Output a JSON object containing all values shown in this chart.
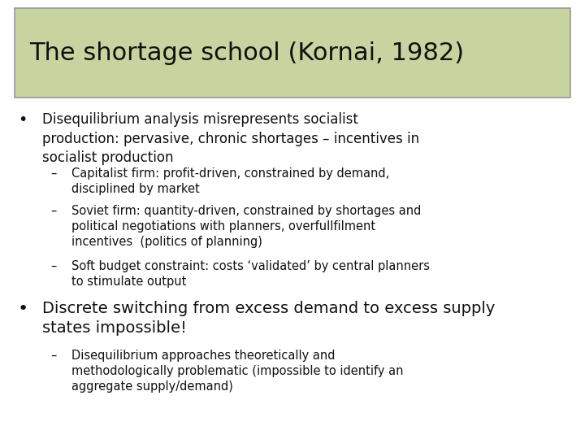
{
  "title": "The shortage school (Kornai, 1982)",
  "title_bg_color": "#c8d4a0",
  "title_border_color": "#999999",
  "background_color": "#ffffff",
  "title_fontsize": 22,
  "body_fontsize": 12,
  "sub_fontsize": 10.5,
  "bullet2_fontsize": 14,
  "bullet1_text": "Disequilibrium analysis misrepresents socialist\nproduction: pervasive, chronic shortages – incentives in\nsocialist production",
  "sub1_text": "Capitalist firm: profit-driven, constrained by demand,\ndisciplined by market",
  "sub2_text": "Soviet firm: quantity-driven, constrained by shortages and\npolitical negotiations with planners, overfullfilment\nincentives  (politics of planning)",
  "sub3_text": "Soft budget constraint: costs ‘validated’ by central planners\nto stimulate output",
  "bullet2_text": "Discrete switching from excess demand to excess supply\nstates impossible!",
  "sub4_text": "Disequilibrium approaches theoretically and\nmethodologically problematic (impossible to identify an\naggregate supply/demand)"
}
